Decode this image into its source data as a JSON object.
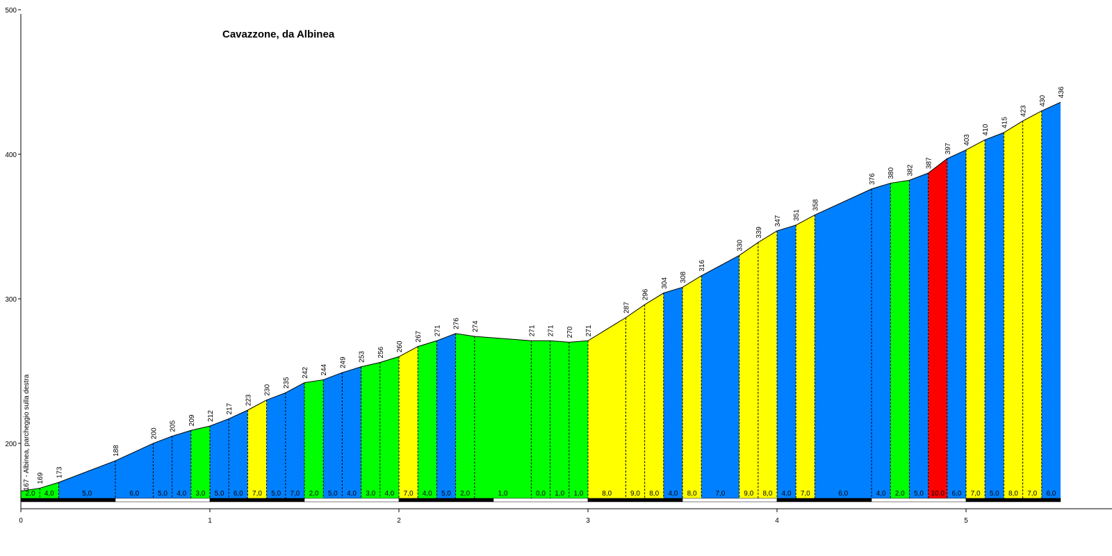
{
  "chart_data": {
    "type": "area",
    "title": "Cavazzone, da Albinea",
    "start_label": "167 - Albinea, parcheggio sulla destra",
    "xlabel": "",
    "ylabel": "",
    "xlim": [
      0,
      5.9
    ],
    "ylim": [
      158,
      500
    ],
    "x_ticks": [
      "0",
      "1",
      "2",
      "3",
      "4",
      "5"
    ],
    "y_ticks": [
      "200",
      "300",
      "400",
      "500"
    ],
    "grid": false,
    "colors": {
      "green": "#00ff00",
      "blue": "#0080ff",
      "yellow": "#ffff00",
      "red": "#ff0000"
    },
    "points": [
      {
        "x": 0.0,
        "elev": 167,
        "label": ""
      },
      {
        "x": 0.1,
        "elev": 169,
        "label": "169"
      },
      {
        "x": 0.2,
        "elev": 173,
        "label": "173"
      },
      {
        "x": 0.5,
        "elev": 188,
        "label": "188"
      },
      {
        "x": 0.7,
        "elev": 200,
        "label": "200"
      },
      {
        "x": 0.8,
        "elev": 205,
        "label": "205"
      },
      {
        "x": 0.9,
        "elev": 209,
        "label": "209"
      },
      {
        "x": 1.0,
        "elev": 212,
        "label": "212"
      },
      {
        "x": 1.1,
        "elev": 217,
        "label": "217"
      },
      {
        "x": 1.2,
        "elev": 223,
        "label": "223"
      },
      {
        "x": 1.3,
        "elev": 230,
        "label": "230"
      },
      {
        "x": 1.4,
        "elev": 235,
        "label": "235"
      },
      {
        "x": 1.5,
        "elev": 242,
        "label": "242"
      },
      {
        "x": 1.6,
        "elev": 244,
        "label": "244"
      },
      {
        "x": 1.7,
        "elev": 249,
        "label": "249"
      },
      {
        "x": 1.8,
        "elev": 253,
        "label": "253"
      },
      {
        "x": 1.9,
        "elev": 256,
        "label": "256"
      },
      {
        "x": 2.0,
        "elev": 260,
        "label": "260"
      },
      {
        "x": 2.1,
        "elev": 267,
        "label": "267"
      },
      {
        "x": 2.2,
        "elev": 271,
        "label": "271"
      },
      {
        "x": 2.3,
        "elev": 276,
        "label": "276"
      },
      {
        "x": 2.4,
        "elev": 274,
        "label": "274"
      },
      {
        "x": 2.7,
        "elev": 271,
        "label": "271"
      },
      {
        "x": 2.8,
        "elev": 271,
        "label": "271"
      },
      {
        "x": 2.9,
        "elev": 270,
        "label": "270"
      },
      {
        "x": 3.0,
        "elev": 271,
        "label": "271"
      },
      {
        "x": 3.2,
        "elev": 287,
        "label": "287"
      },
      {
        "x": 3.3,
        "elev": 296,
        "label": "296"
      },
      {
        "x": 3.4,
        "elev": 304,
        "label": "304"
      },
      {
        "x": 3.5,
        "elev": 308,
        "label": "308"
      },
      {
        "x": 3.6,
        "elev": 316,
        "label": "316"
      },
      {
        "x": 3.8,
        "elev": 330,
        "label": "330"
      },
      {
        "x": 3.9,
        "elev": 339,
        "label": "339"
      },
      {
        "x": 4.0,
        "elev": 347,
        "label": "347"
      },
      {
        "x": 4.1,
        "elev": 351,
        "label": "351"
      },
      {
        "x": 4.2,
        "elev": 358,
        "label": "358"
      },
      {
        "x": 4.5,
        "elev": 376,
        "label": "376"
      },
      {
        "x": 4.6,
        "elev": 380,
        "label": "380"
      },
      {
        "x": 4.7,
        "elev": 382,
        "label": "382"
      },
      {
        "x": 4.8,
        "elev": 387,
        "label": "387"
      },
      {
        "x": 4.9,
        "elev": 397,
        "label": "397"
      },
      {
        "x": 5.0,
        "elev": 403,
        "label": "403"
      },
      {
        "x": 5.1,
        "elev": 410,
        "label": "410"
      },
      {
        "x": 5.2,
        "elev": 415,
        "label": "415"
      },
      {
        "x": 5.3,
        "elev": 423,
        "label": "423"
      },
      {
        "x": 5.4,
        "elev": 430,
        "label": "430"
      },
      {
        "x": 5.5,
        "elev": 436,
        "label": "436"
      }
    ],
    "segments": [
      {
        "grade": "2,0",
        "color": "green"
      },
      {
        "grade": "4,0",
        "color": "green"
      },
      {
        "grade": "5,0",
        "color": "blue"
      },
      {
        "grade": "6,0",
        "color": "blue"
      },
      {
        "grade": "5,0",
        "color": "blue"
      },
      {
        "grade": "4,0",
        "color": "blue"
      },
      {
        "grade": "3,0",
        "color": "green"
      },
      {
        "grade": "5,0",
        "color": "blue"
      },
      {
        "grade": "6,0",
        "color": "blue"
      },
      {
        "grade": "7,0",
        "color": "yellow"
      },
      {
        "grade": "5,0",
        "color": "blue"
      },
      {
        "grade": "7,0",
        "color": "blue"
      },
      {
        "grade": "2,0",
        "color": "green"
      },
      {
        "grade": "5,0",
        "color": "blue"
      },
      {
        "grade": "4,0",
        "color": "blue"
      },
      {
        "grade": "3,0",
        "color": "green"
      },
      {
        "grade": "4,0",
        "color": "green"
      },
      {
        "grade": "7,0",
        "color": "yellow"
      },
      {
        "grade": "4,0",
        "color": "green"
      },
      {
        "grade": "5,0",
        "color": "blue"
      },
      {
        "grade": "2,0",
        "color": "green"
      },
      {
        "grade": "1,0",
        "color": "green"
      },
      {
        "grade": "0,0",
        "color": "green"
      },
      {
        "grade": "1,0",
        "color": "green"
      },
      {
        "grade": "1,0",
        "color": "green"
      },
      {
        "grade": "8,0",
        "color": "yellow"
      },
      {
        "grade": "9,0",
        "color": "yellow"
      },
      {
        "grade": "8,0",
        "color": "yellow"
      },
      {
        "grade": "4,0",
        "color": "blue"
      },
      {
        "grade": "8,0",
        "color": "yellow"
      },
      {
        "grade": "7,0",
        "color": "blue"
      },
      {
        "grade": "9,0",
        "color": "yellow"
      },
      {
        "grade": "8,0",
        "color": "yellow"
      },
      {
        "grade": "4,0",
        "color": "blue"
      },
      {
        "grade": "7,0",
        "color": "yellow"
      },
      {
        "grade": "6,0",
        "color": "blue"
      },
      {
        "grade": "4,0",
        "color": "blue"
      },
      {
        "grade": "2,0",
        "color": "green"
      },
      {
        "grade": "5,0",
        "color": "blue"
      },
      {
        "grade": "10,0",
        "color": "red"
      },
      {
        "grade": "6,0",
        "color": "blue"
      },
      {
        "grade": "7,0",
        "color": "yellow"
      },
      {
        "grade": "5,0",
        "color": "blue"
      },
      {
        "grade": "8,0",
        "color": "yellow"
      },
      {
        "grade": "7,0",
        "color": "yellow"
      },
      {
        "grade": "6,0",
        "color": "blue"
      }
    ]
  }
}
